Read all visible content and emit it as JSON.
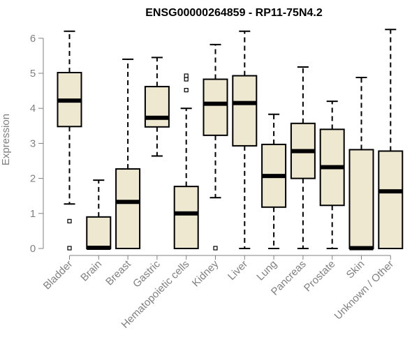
{
  "chart_data": {
    "type": "boxplot",
    "title": "ENSG00000264859 - RP11-75N4.2",
    "xlabel": "",
    "ylabel": "Expression",
    "ylim": [
      0,
      6.2
    ],
    "yticks": [
      0,
      1,
      2,
      3,
      4,
      5,
      6
    ],
    "grid": false,
    "box_fill": "#efe8d0",
    "box_stroke": "#000000",
    "axis_color": "#808080",
    "categories": [
      "Bladder",
      "Brain",
      "Breast",
      "Gastric",
      "Hematopoietic cells",
      "Kidney",
      "Liver",
      "Lung",
      "Pancreas",
      "Prostate",
      "Skin",
      "Unknown / Other"
    ],
    "boxes": [
      {
        "whisker_low": 1.27,
        "q1": 3.48,
        "median": 4.22,
        "q3": 5.02,
        "whisker_high": 6.2,
        "outliers": [
          0.78,
          0.01
        ]
      },
      {
        "whisker_low": 0.0,
        "q1": 0.0,
        "median": 0.02,
        "q3": 0.9,
        "whisker_high": 1.95,
        "outliers": []
      },
      {
        "whisker_low": 0.0,
        "q1": 0.0,
        "median": 1.33,
        "q3": 2.27,
        "whisker_high": 5.4,
        "outliers": []
      },
      {
        "whisker_low": 2.64,
        "q1": 3.47,
        "median": 3.73,
        "q3": 4.62,
        "whisker_high": 5.45,
        "outliers": []
      },
      {
        "whisker_low": 0.0,
        "q1": 0.0,
        "median": 1.0,
        "q3": 1.77,
        "whisker_high": 4.0,
        "outliers": [
          4.52,
          4.83,
          4.93
        ]
      },
      {
        "whisker_low": 1.45,
        "q1": 3.23,
        "median": 4.13,
        "q3": 4.83,
        "whisker_high": 5.82,
        "outliers": [
          0.01
        ]
      },
      {
        "whisker_low": 0.0,
        "q1": 2.93,
        "median": 4.15,
        "q3": 4.93,
        "whisker_high": 6.2,
        "outliers": []
      },
      {
        "whisker_low": 0.0,
        "q1": 1.18,
        "median": 2.07,
        "q3": 2.97,
        "whisker_high": 3.83,
        "outliers": []
      },
      {
        "whisker_low": 0.0,
        "q1": 2.0,
        "median": 2.78,
        "q3": 3.57,
        "whisker_high": 5.18,
        "outliers": []
      },
      {
        "whisker_low": 0.0,
        "q1": 1.23,
        "median": 2.32,
        "q3": 3.4,
        "whisker_high": 4.2,
        "outliers": []
      },
      {
        "whisker_low": 0.0,
        "q1": 0.0,
        "median": 0.01,
        "q3": 2.82,
        "whisker_high": 4.88,
        "outliers": []
      },
      {
        "whisker_low": 0.0,
        "q1": 0.0,
        "median": 1.63,
        "q3": 2.78,
        "whisker_high": 6.25,
        "outliers": []
      }
    ]
  }
}
